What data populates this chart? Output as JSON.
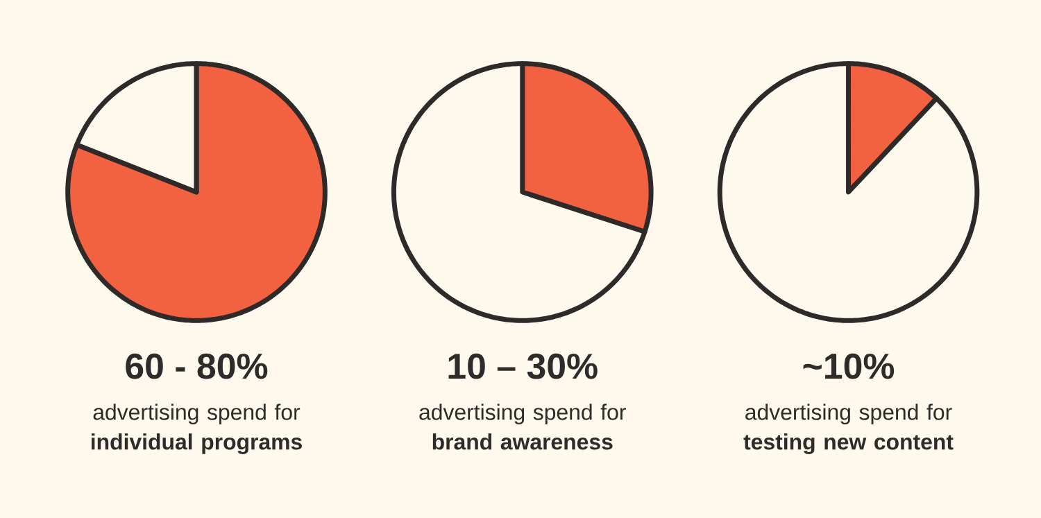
{
  "chart_data": [
    {
      "type": "pie",
      "title": "60 - 80%",
      "subtitle": "advertising spend for **individual programs**",
      "categories": [
        null,
        null
      ],
      "values": [
        81,
        19
      ],
      "colors": [
        "#f26241",
        "#fdf9ec"
      ]
    },
    {
      "type": "pie",
      "title": "10 – 30%",
      "subtitle": "advertising spend for **brand awareness**",
      "categories": [
        null,
        null
      ],
      "values": [
        30,
        70
      ],
      "colors": [
        "#f26241",
        "#fdf9ec"
      ]
    },
    {
      "type": "pie",
      "title": "~10%",
      "subtitle": "advertising spend for **testing new content**",
      "categories": [
        null,
        null
      ],
      "values": [
        12,
        88
      ],
      "colors": [
        "#f26241",
        "#fdf9ec"
      ]
    }
  ]
}
